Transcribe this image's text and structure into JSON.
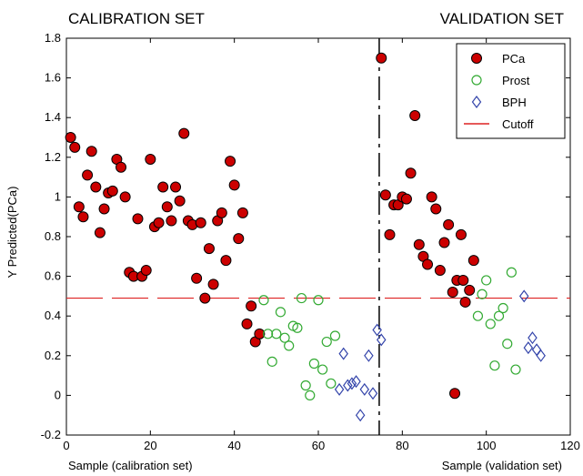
{
  "chart_data": {
    "type": "scatter",
    "title": "",
    "section_labels": {
      "left": "CALIBRATION SET",
      "right": "VALIDATION SET"
    },
    "xlabel_left": "Sample (calibration set)",
    "xlabel_right": "Sample (validation set)",
    "ylabel": "Y Predicted(PCa)",
    "xlim": [
      0,
      120
    ],
    "ylim": [
      -0.2,
      1.8
    ],
    "x_ticks": [
      0,
      20,
      40,
      60,
      80,
      100,
      120
    ],
    "y_ticks": [
      -0.2,
      0,
      0.2,
      0.4,
      0.6,
      0.8,
      1,
      1.2,
      1.4,
      1.6,
      1.8
    ],
    "y_tick_labels": [
      "-0.2",
      "0",
      "0.2",
      "0.4",
      "0.6",
      "0.8",
      "1",
      "1.2",
      "1.4",
      "1.6",
      "1.8"
    ],
    "split_x": 74.5,
    "cutoff_y": 0.49,
    "legend_position": "top-right",
    "grid": false,
    "series": [
      {
        "name": "PCa",
        "marker": "filled-circle",
        "color": "#cc0000",
        "edge": "#000000",
        "points": [
          [
            1,
            1.3
          ],
          [
            2,
            1.25
          ],
          [
            3,
            0.95
          ],
          [
            4,
            0.9
          ],
          [
            5,
            1.11
          ],
          [
            6,
            1.23
          ],
          [
            7,
            1.05
          ],
          [
            8,
            0.82
          ],
          [
            9,
            0.94
          ],
          [
            10,
            1.02
          ],
          [
            11,
            1.03
          ],
          [
            12,
            1.19
          ],
          [
            13,
            1.15
          ],
          [
            14,
            1.0
          ],
          [
            15,
            0.62
          ],
          [
            16,
            0.6
          ],
          [
            17,
            0.89
          ],
          [
            18,
            0.6
          ],
          [
            19,
            0.63
          ],
          [
            20,
            1.19
          ],
          [
            21,
            0.85
          ],
          [
            22,
            0.87
          ],
          [
            23,
            1.05
          ],
          [
            24,
            0.95
          ],
          [
            25,
            0.88
          ],
          [
            26,
            1.05
          ],
          [
            27,
            0.98
          ],
          [
            28,
            1.32
          ],
          [
            29,
            0.88
          ],
          [
            30,
            0.86
          ],
          [
            31,
            0.59
          ],
          [
            32,
            0.87
          ],
          [
            33,
            0.49
          ],
          [
            34,
            0.74
          ],
          [
            35,
            0.56
          ],
          [
            36,
            0.88
          ],
          [
            37,
            0.92
          ],
          [
            38,
            0.68
          ],
          [
            39,
            1.18
          ],
          [
            40,
            1.06
          ],
          [
            41,
            0.79
          ],
          [
            42,
            0.92
          ],
          [
            43,
            0.36
          ],
          [
            44,
            0.45
          ],
          [
            45,
            0.27
          ],
          [
            46,
            0.31
          ],
          [
            75,
            1.7
          ],
          [
            76,
            1.01
          ],
          [
            77,
            0.81
          ],
          [
            78,
            0.96
          ],
          [
            79,
            0.96
          ],
          [
            80,
            1.0
          ],
          [
            81,
            0.99
          ],
          [
            82,
            1.12
          ],
          [
            83,
            1.41
          ],
          [
            84,
            0.76
          ],
          [
            85,
            0.7
          ],
          [
            86,
            0.66
          ],
          [
            87,
            1.0
          ],
          [
            88,
            0.94
          ],
          [
            89,
            0.63
          ],
          [
            90,
            0.77
          ],
          [
            91,
            0.86
          ],
          [
            92,
            0.52
          ],
          [
            92.5,
            0.01
          ],
          [
            93,
            0.58
          ],
          [
            94,
            0.81
          ],
          [
            94.5,
            0.58
          ],
          [
            95,
            0.47
          ],
          [
            96,
            0.53
          ],
          [
            97,
            0.68
          ]
        ]
      },
      {
        "name": "Prost",
        "marker": "open-circle",
        "color": "#33aa33",
        "points": [
          [
            47,
            0.48
          ],
          [
            48,
            0.31
          ],
          [
            49,
            0.17
          ],
          [
            50,
            0.31
          ],
          [
            51,
            0.42
          ],
          [
            52,
            0.29
          ],
          [
            53,
            0.25
          ],
          [
            54,
            0.35
          ],
          [
            55,
            0.34
          ],
          [
            56,
            0.49
          ],
          [
            57,
            0.05
          ],
          [
            58,
            0.0
          ],
          [
            59,
            0.16
          ],
          [
            60,
            0.48
          ],
          [
            61,
            0.13
          ],
          [
            62,
            0.27
          ],
          [
            63,
            0.06
          ],
          [
            64,
            0.3
          ],
          [
            98,
            0.4
          ],
          [
            99,
            0.51
          ],
          [
            100,
            0.58
          ],
          [
            101,
            0.36
          ],
          [
            102,
            0.15
          ],
          [
            103,
            0.4
          ],
          [
            104,
            0.44
          ],
          [
            105,
            0.26
          ],
          [
            106,
            0.62
          ],
          [
            107,
            0.13
          ]
        ]
      },
      {
        "name": "BPH",
        "marker": "open-diamond",
        "color": "#3344aa",
        "points": [
          [
            65,
            0.03
          ],
          [
            66,
            0.21
          ],
          [
            67,
            0.05
          ],
          [
            68,
            0.06
          ],
          [
            69,
            0.07
          ],
          [
            70,
            -0.1
          ],
          [
            71,
            0.03
          ],
          [
            72,
            0.2
          ],
          [
            73,
            0.01
          ],
          [
            74,
            0.33
          ],
          [
            75,
            0.28
          ],
          [
            109,
            0.5
          ],
          [
            110,
            0.24
          ],
          [
            111,
            0.29
          ],
          [
            112,
            0.23
          ],
          [
            113,
            0.2
          ]
        ]
      },
      {
        "name": "Cutoff",
        "marker": "dashed-line",
        "color": "#dd2222",
        "value": 0.49
      }
    ]
  }
}
